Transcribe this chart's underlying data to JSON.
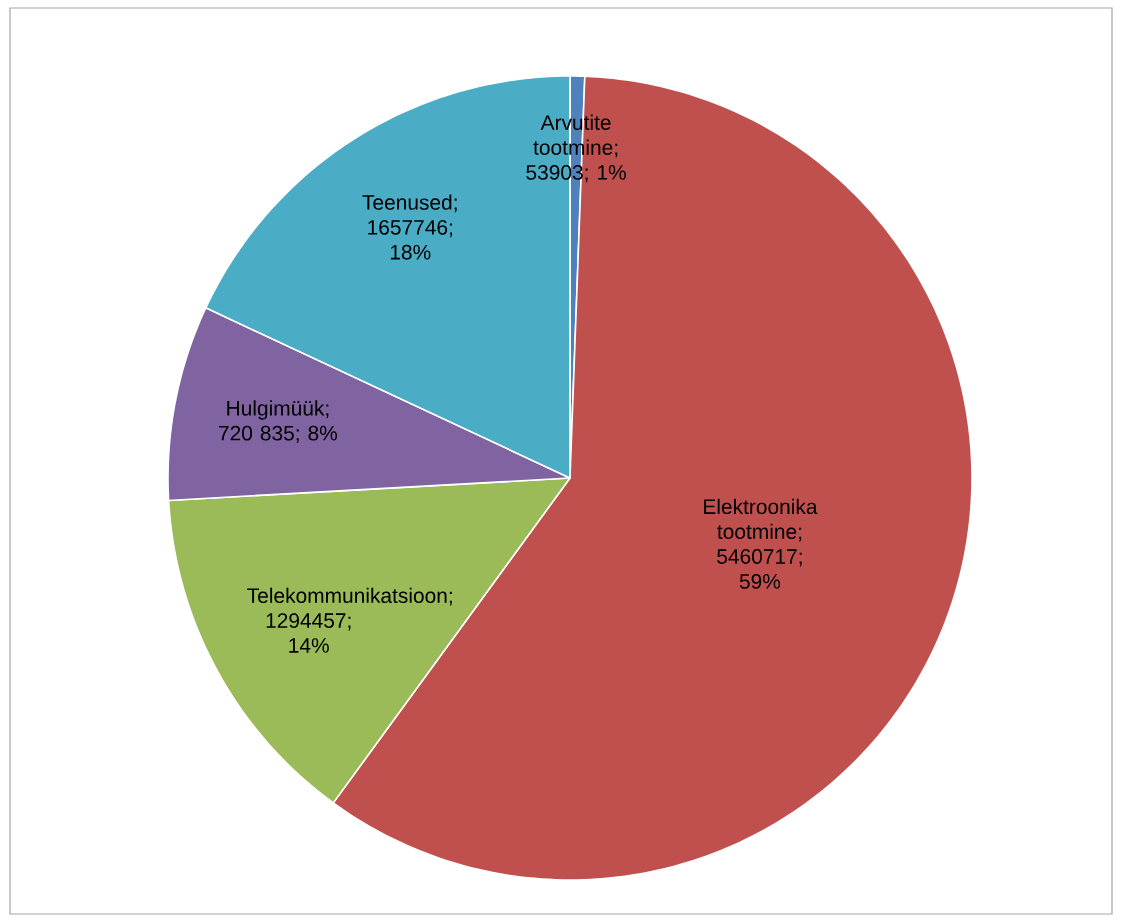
{
  "chart_data": {
    "type": "pie",
    "categories": [
      "Arvutite tootmine",
      "Elektroonika tootmine",
      "Telekommunikatsioon",
      "Hulgimüük",
      "Teenused"
    ],
    "values": [
      53903,
      5460717,
      1294457,
      720835,
      1657746
    ],
    "value_labels": [
      "; 53903; 1%",
      "; 5460717; 59%",
      "; 1294457; 14%",
      "; 720 835; 8%",
      "; 1657746; 18%"
    ],
    "colors": [
      "#4f81bd",
      "#c0504d",
      "#9bbb59",
      "#8064a2",
      "#4bacc6"
    ]
  }
}
